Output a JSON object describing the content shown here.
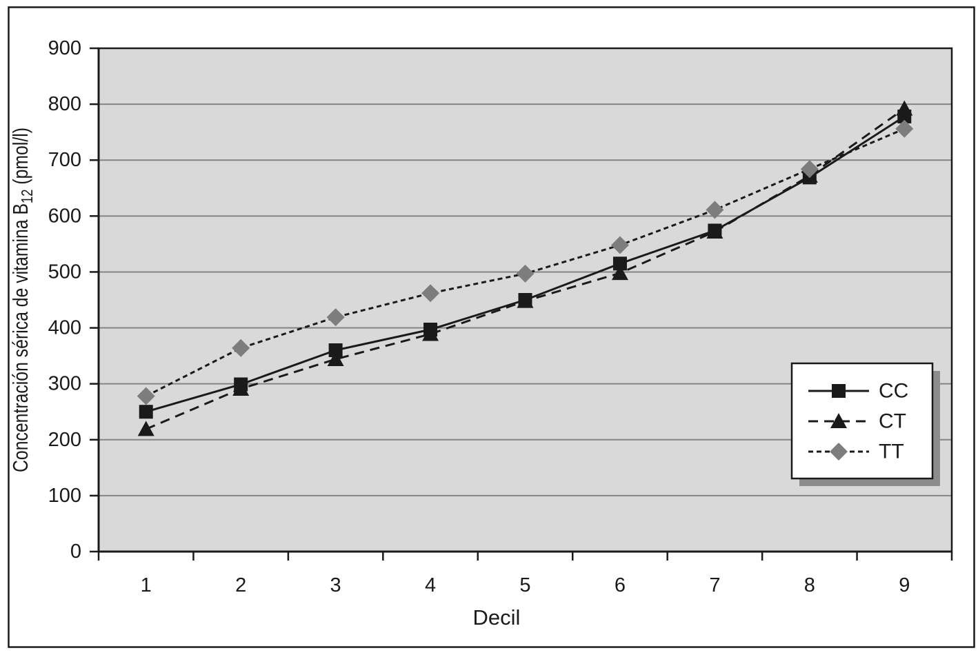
{
  "figure": {
    "background": "#ffffff",
    "frame_color": "#1a1a1a"
  },
  "chart_data": {
    "type": "line",
    "title": "",
    "xlabel": "Decil",
    "ylabel": "Concentración sérica de vitamina B12 (pmol/l)",
    "ylabel_prefix": "Concentración sérica de vitamina B",
    "ylabel_sub": "12",
    "ylabel_suffix": " (pmol/l)",
    "categories": [
      1,
      2,
      3,
      4,
      5,
      6,
      7,
      8,
      9
    ],
    "x_tick_labels": [
      "1",
      "2",
      "3",
      "4",
      "5",
      "6",
      "7",
      "8",
      "9"
    ],
    "y_ticks": [
      0,
      100,
      200,
      300,
      400,
      500,
      600,
      700,
      800,
      900
    ],
    "ylim": [
      0,
      900
    ],
    "grid": "horizontal",
    "plot_bg": "#d9d9d9",
    "grid_color": "#848484",
    "axis_color": "#1a1a1a",
    "legend": {
      "position": "right-middle",
      "bg": "#ffffff",
      "border": "#1a1a1a",
      "shadow": "#8c8c8c",
      "entries": [
        "CC",
        "CT",
        "TT"
      ]
    },
    "series": [
      {
        "name": "CC",
        "marker": "square",
        "line_style": "solid",
        "color": "#1a1a1a",
        "marker_color": "#1a1a1a",
        "z": 2,
        "values": [
          250,
          299,
          360,
          397,
          450,
          515,
          574,
          669,
          778
        ]
      },
      {
        "name": "CT",
        "marker": "triangle",
        "line_style": "long-dash",
        "color": "#1a1a1a",
        "marker_color": "#1a1a1a",
        "z": 1,
        "values": [
          219,
          291,
          344,
          389,
          448,
          498,
          572,
          672,
          792
        ]
      },
      {
        "name": "TT",
        "marker": "diamond",
        "line_style": "short-dash",
        "color": "#1a1a1a",
        "marker_color": "#7d7d7d",
        "z": 3,
        "values": [
          278,
          364,
          419,
          462,
          497,
          548,
          611,
          684,
          756
        ]
      }
    ]
  }
}
